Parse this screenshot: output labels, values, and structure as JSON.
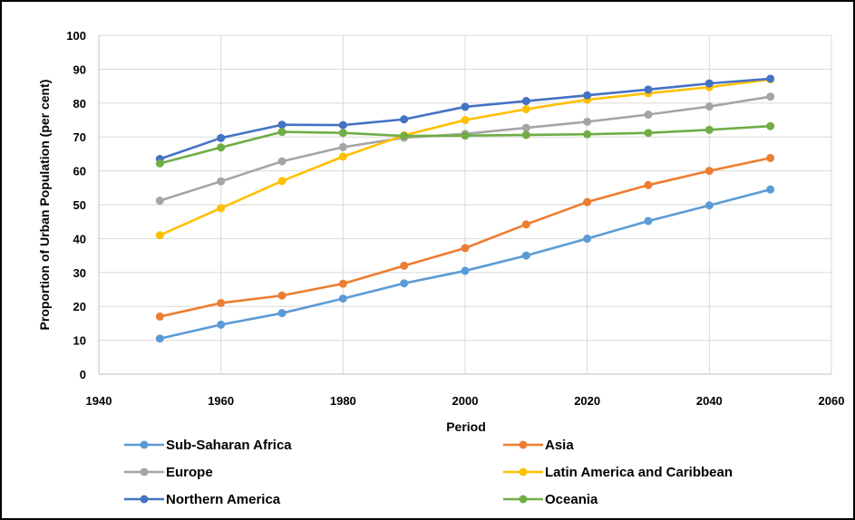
{
  "chart_data": {
    "type": "line",
    "title": "",
    "xlabel": "Period",
    "ylabel": "Proportion of Urban Population (per cent)",
    "xlim": [
      1940,
      2060
    ],
    "ylim": [
      0,
      100
    ],
    "x_ticks": [
      1940,
      1960,
      1980,
      2000,
      2020,
      2040,
      2060
    ],
    "y_ticks": [
      0,
      10,
      20,
      30,
      40,
      50,
      60,
      70,
      80,
      90,
      100
    ],
    "grid": true,
    "legend_position": "bottom",
    "x": [
      1950,
      1960,
      1970,
      1980,
      1990,
      2000,
      2010,
      2020,
      2030,
      2040,
      2050
    ],
    "series": [
      {
        "name": "Sub-Saharan Africa",
        "color": "#5B9BD5",
        "values": [
          10.5,
          14.6,
          18.0,
          22.3,
          26.8,
          30.5,
          35.0,
          40.0,
          45.2,
          49.8,
          54.5
        ]
      },
      {
        "name": "Asia",
        "color": "#ED7D31",
        "values": [
          17.0,
          21.0,
          23.2,
          26.7,
          32.0,
          37.2,
          44.2,
          50.8,
          55.8,
          60.0,
          63.8
        ]
      },
      {
        "name": "Europe",
        "color": "#A5A5A5",
        "values": [
          51.2,
          56.9,
          62.8,
          67.0,
          69.8,
          70.9,
          72.7,
          74.5,
          76.6,
          79.0,
          81.9
        ]
      },
      {
        "name": "Latin America and Caribbean",
        "color": "#FFC000",
        "values": [
          41.0,
          49.0,
          57.0,
          64.2,
          70.5,
          75.0,
          78.2,
          81.0,
          82.9,
          84.7,
          87.0
        ]
      },
      {
        "name": "Northern America",
        "color": "#4472C4",
        "values": [
          63.5,
          69.7,
          73.6,
          73.5,
          75.2,
          78.9,
          80.6,
          82.3,
          84.0,
          85.8,
          87.2
        ]
      },
      {
        "name": "Oceania",
        "color": "#70AD47",
        "values": [
          62.2,
          66.9,
          71.5,
          71.2,
          70.3,
          70.4,
          70.6,
          70.8,
          71.2,
          72.1,
          73.2
        ]
      }
    ]
  }
}
